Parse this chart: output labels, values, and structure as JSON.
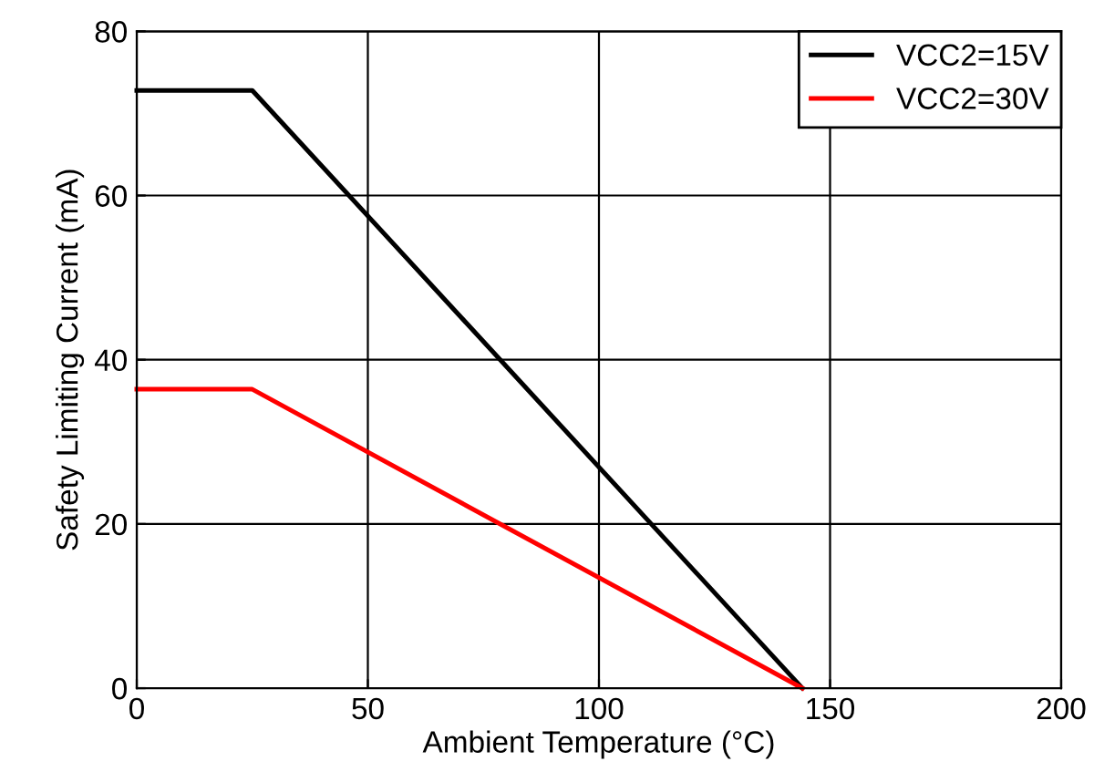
{
  "chart_data": {
    "type": "line",
    "xlabel": "Ambient Temperature (°C)",
    "ylabel": "Safety Limiting Current (mA)",
    "x": [
      0,
      25,
      144
    ],
    "series": [
      {
        "name": "VCC2=15V",
        "color": "#000000",
        "values": [
          72.8,
          72.8,
          0
        ]
      },
      {
        "name": "VCC2=30V",
        "color": "#ff0000",
        "values": [
          36.4,
          36.4,
          0
        ]
      }
    ],
    "xlim": [
      0,
      200
    ],
    "xticks": [
      0,
      50,
      100,
      150,
      200
    ],
    "ylim": [
      0,
      80
    ],
    "yticks": [
      0,
      20,
      40,
      60,
      80
    ],
    "grid": true,
    "legend": "top right",
    "marker": "none",
    "line_style": "solid"
  }
}
